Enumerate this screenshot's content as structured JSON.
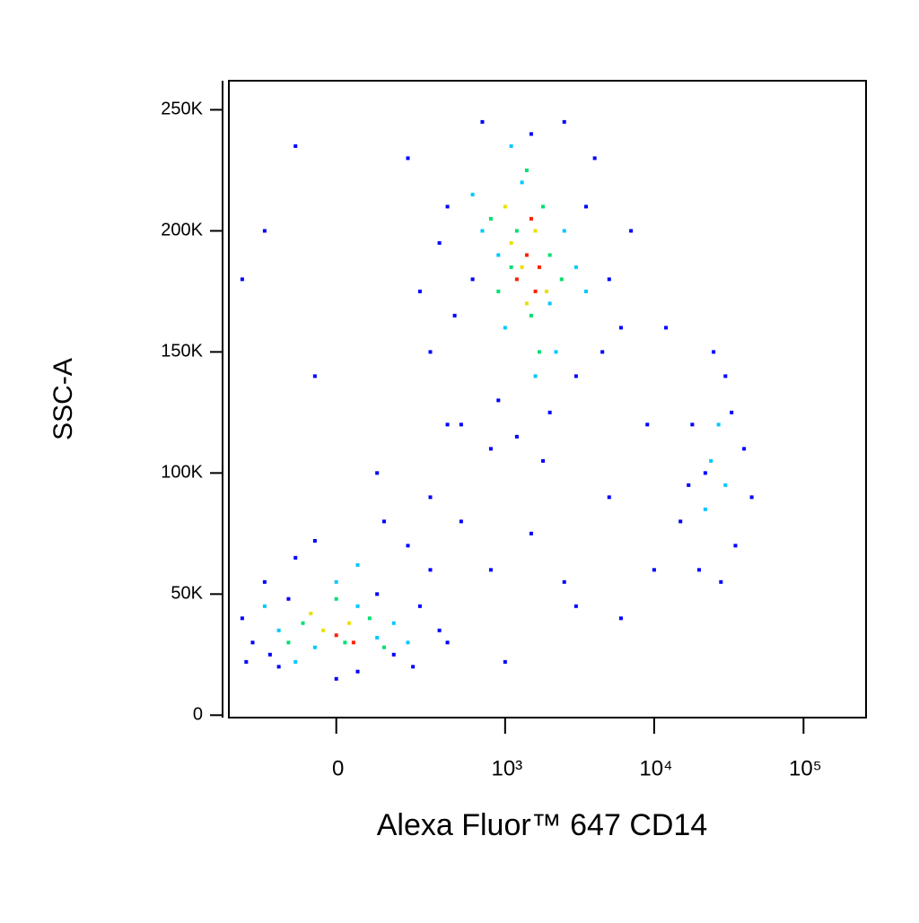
{
  "chart_data": {
    "type": "scatter",
    "x_label": "Alexa Fluor™ 647  CD14",
    "y_label": "SSC-A",
    "xscale": "biexponential",
    "xlim": [
      -376,
      262144
    ],
    "ylim": [
      -1000,
      262000
    ],
    "xticks": [
      0,
      {
        "value": 1000,
        "label": "10³"
      },
      {
        "value": 10000,
        "label": "10⁴"
      },
      {
        "value": 100000,
        "label": "10⁵"
      }
    ],
    "yticks": [
      0,
      {
        "value": 50000,
        "label": "50K"
      },
      {
        "value": 100000,
        "label": "100K"
      },
      {
        "value": 150000,
        "label": "150K"
      },
      {
        "value": 200000,
        "label": "200K"
      },
      {
        "value": 250000,
        "label": "250K"
      }
    ],
    "series": [
      {
        "color": "#0000ff",
        "x": [
          -250,
          -200,
          -150,
          -100,
          -300,
          50,
          150,
          250,
          300,
          -50,
          200,
          100,
          -180,
          350,
          0,
          -280,
          220,
          400,
          120,
          -120,
          200,
          300,
          400,
          500,
          700,
          900,
          1200,
          1500,
          2000,
          3000,
          4000,
          5000,
          6000,
          3500,
          600,
          800,
          2500,
          450,
          1800,
          4500,
          350,
          7000,
          250,
          15000,
          18000,
          20000,
          25000,
          30000,
          35000,
          40000,
          45000,
          22000,
          28000,
          17000,
          33000,
          -100,
          -200,
          -300,
          100,
          300,
          500,
          800,
          1500,
          2500,
          1000,
          3000,
          6000,
          10000,
          9000,
          12000,
          -50,
          400,
          5000
        ],
        "y": [
          30000,
          55000,
          20000,
          65000,
          40000,
          18000,
          25000,
          45000,
          60000,
          72000,
          70000,
          50000,
          25000,
          35000,
          15000,
          22000,
          20000,
          30000,
          80000,
          48000,
          230000,
          150000,
          210000,
          120000,
          245000,
          130000,
          115000,
          240000,
          125000,
          140000,
          230000,
          180000,
          160000,
          210000,
          180000,
          110000,
          245000,
          165000,
          105000,
          150000,
          195000,
          200000,
          175000,
          80000,
          120000,
          60000,
          150000,
          140000,
          70000,
          110000,
          90000,
          100000,
          55000,
          95000,
          125000,
          235000,
          200000,
          180000,
          100000,
          90000,
          80000,
          60000,
          75000,
          55000,
          22000,
          45000,
          40000,
          60000,
          120000,
          160000,
          140000,
          120000,
          90000
        ]
      },
      {
        "color": "#00c8ff",
        "x": [
          -150,
          -50,
          50,
          100,
          -200,
          0,
          150,
          -100,
          200,
          50,
          700,
          1000,
          1300,
          2000,
          2500,
          900,
          1600,
          3000,
          1100,
          2200,
          600,
          3500,
          24000,
          30000,
          27000,
          22000
        ],
        "y": [
          35000,
          28000,
          45000,
          32000,
          45000,
          55000,
          38000,
          22000,
          30000,
          62000,
          200000,
          160000,
          220000,
          170000,
          200000,
          190000,
          140000,
          185000,
          235000,
          150000,
          215000,
          175000,
          105000,
          95000,
          120000,
          85000
        ]
      },
      {
        "color": "#00e070",
        "x": [
          -80,
          20,
          80,
          -120,
          0,
          120,
          900,
          1200,
          1500,
          1800,
          1100,
          2000,
          1400,
          1700,
          800,
          2400
        ],
        "y": [
          38000,
          30000,
          40000,
          30000,
          48000,
          28000,
          175000,
          200000,
          165000,
          210000,
          185000,
          190000,
          225000,
          150000,
          205000,
          180000
        ]
      },
      {
        "color": "#e8e000",
        "x": [
          -30,
          30,
          -60,
          1300,
          1600,
          1100,
          1900,
          1400,
          1000
        ],
        "y": [
          35000,
          38000,
          42000,
          185000,
          200000,
          195000,
          175000,
          170000,
          210000
        ]
      },
      {
        "color": "#ff2000",
        "x": [
          0,
          40,
          1400,
          1700,
          1200,
          1500,
          1600
        ],
        "y": [
          33000,
          30000,
          190000,
          185000,
          180000,
          205000,
          175000
        ]
      }
    ]
  }
}
